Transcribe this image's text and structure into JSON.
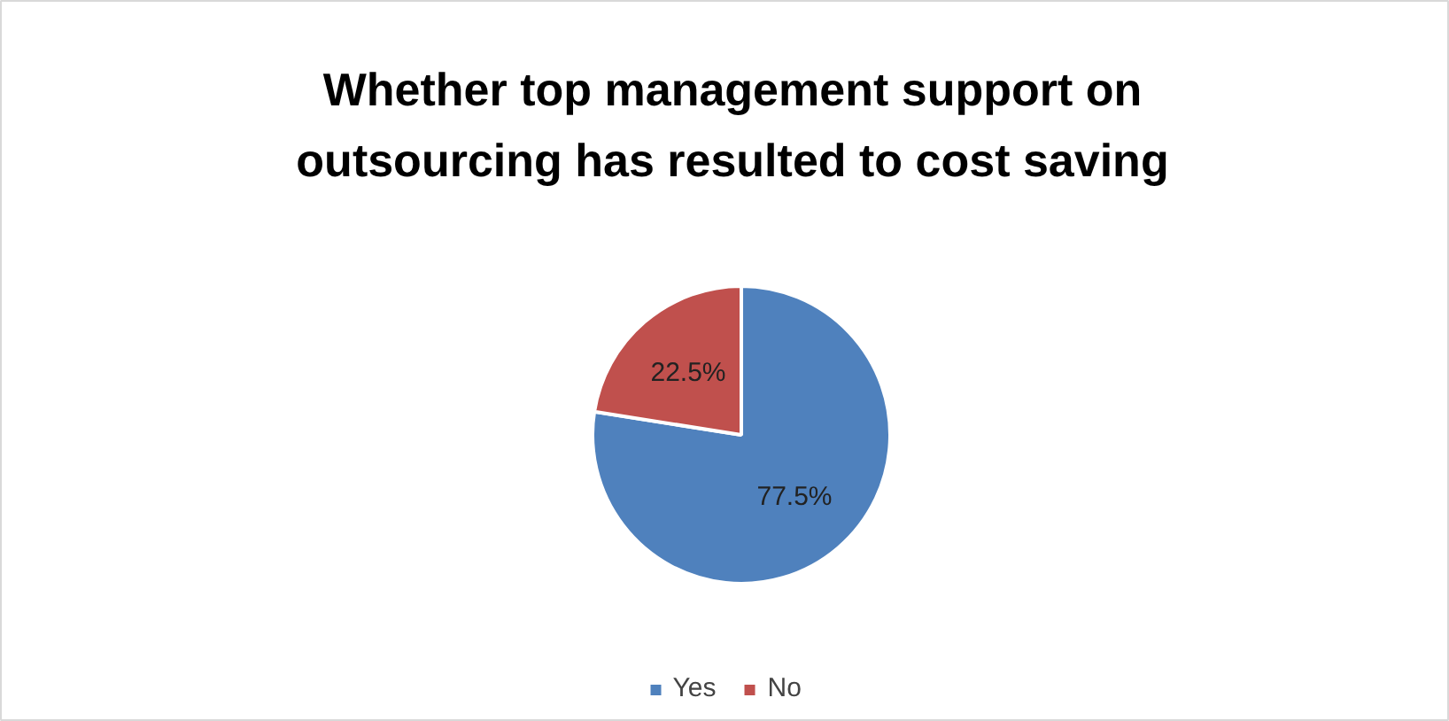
{
  "chart_data": {
    "type": "pie",
    "title": "Whether top management support on outsourcing has resulted to cost saving",
    "categories": [
      "Yes",
      "No"
    ],
    "values": [
      77.5,
      22.5
    ],
    "colors": [
      "#4f81bd",
      "#c0504d"
    ],
    "value_labels": [
      "77.5%",
      "22.5%"
    ],
    "legend": "bottom"
  }
}
